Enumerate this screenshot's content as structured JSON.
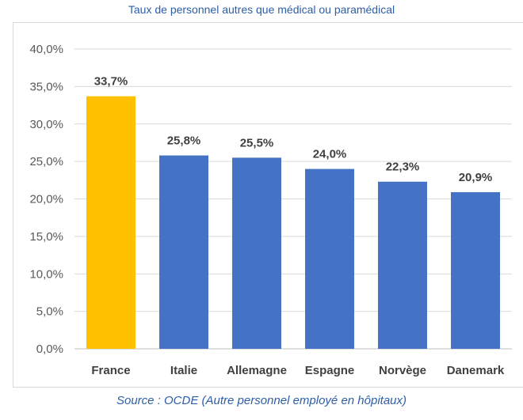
{
  "title": "Taux de personnel autres que médical ou paramédical",
  "source": "Source : OCDE (Autre personnel employé en hôpitaux)",
  "chart_data": {
    "type": "bar",
    "title": "Taux de personnel autres que médical ou paramédical",
    "xlabel": "",
    "ylabel": "",
    "ylim": [
      0,
      40
    ],
    "grid": true,
    "yticks": [
      "0,0%",
      "5,0%",
      "10,0%",
      "15,0%",
      "20,0%",
      "25,0%",
      "30,0%",
      "35,0%",
      "40,0%"
    ],
    "categories": [
      "France",
      "Italie",
      "Allemagne",
      "Espagne",
      "Norvège",
      "Danemark"
    ],
    "values": [
      33.7,
      25.8,
      25.5,
      24.0,
      22.3,
      20.9
    ],
    "data_labels": [
      "33,7%",
      "25,8%",
      "25,5%",
      "24,0%",
      "22,3%",
      "20,9%"
    ],
    "colors": [
      "#ffc000",
      "#4472c4",
      "#4472c4",
      "#4472c4",
      "#4472c4",
      "#4472c4"
    ]
  }
}
